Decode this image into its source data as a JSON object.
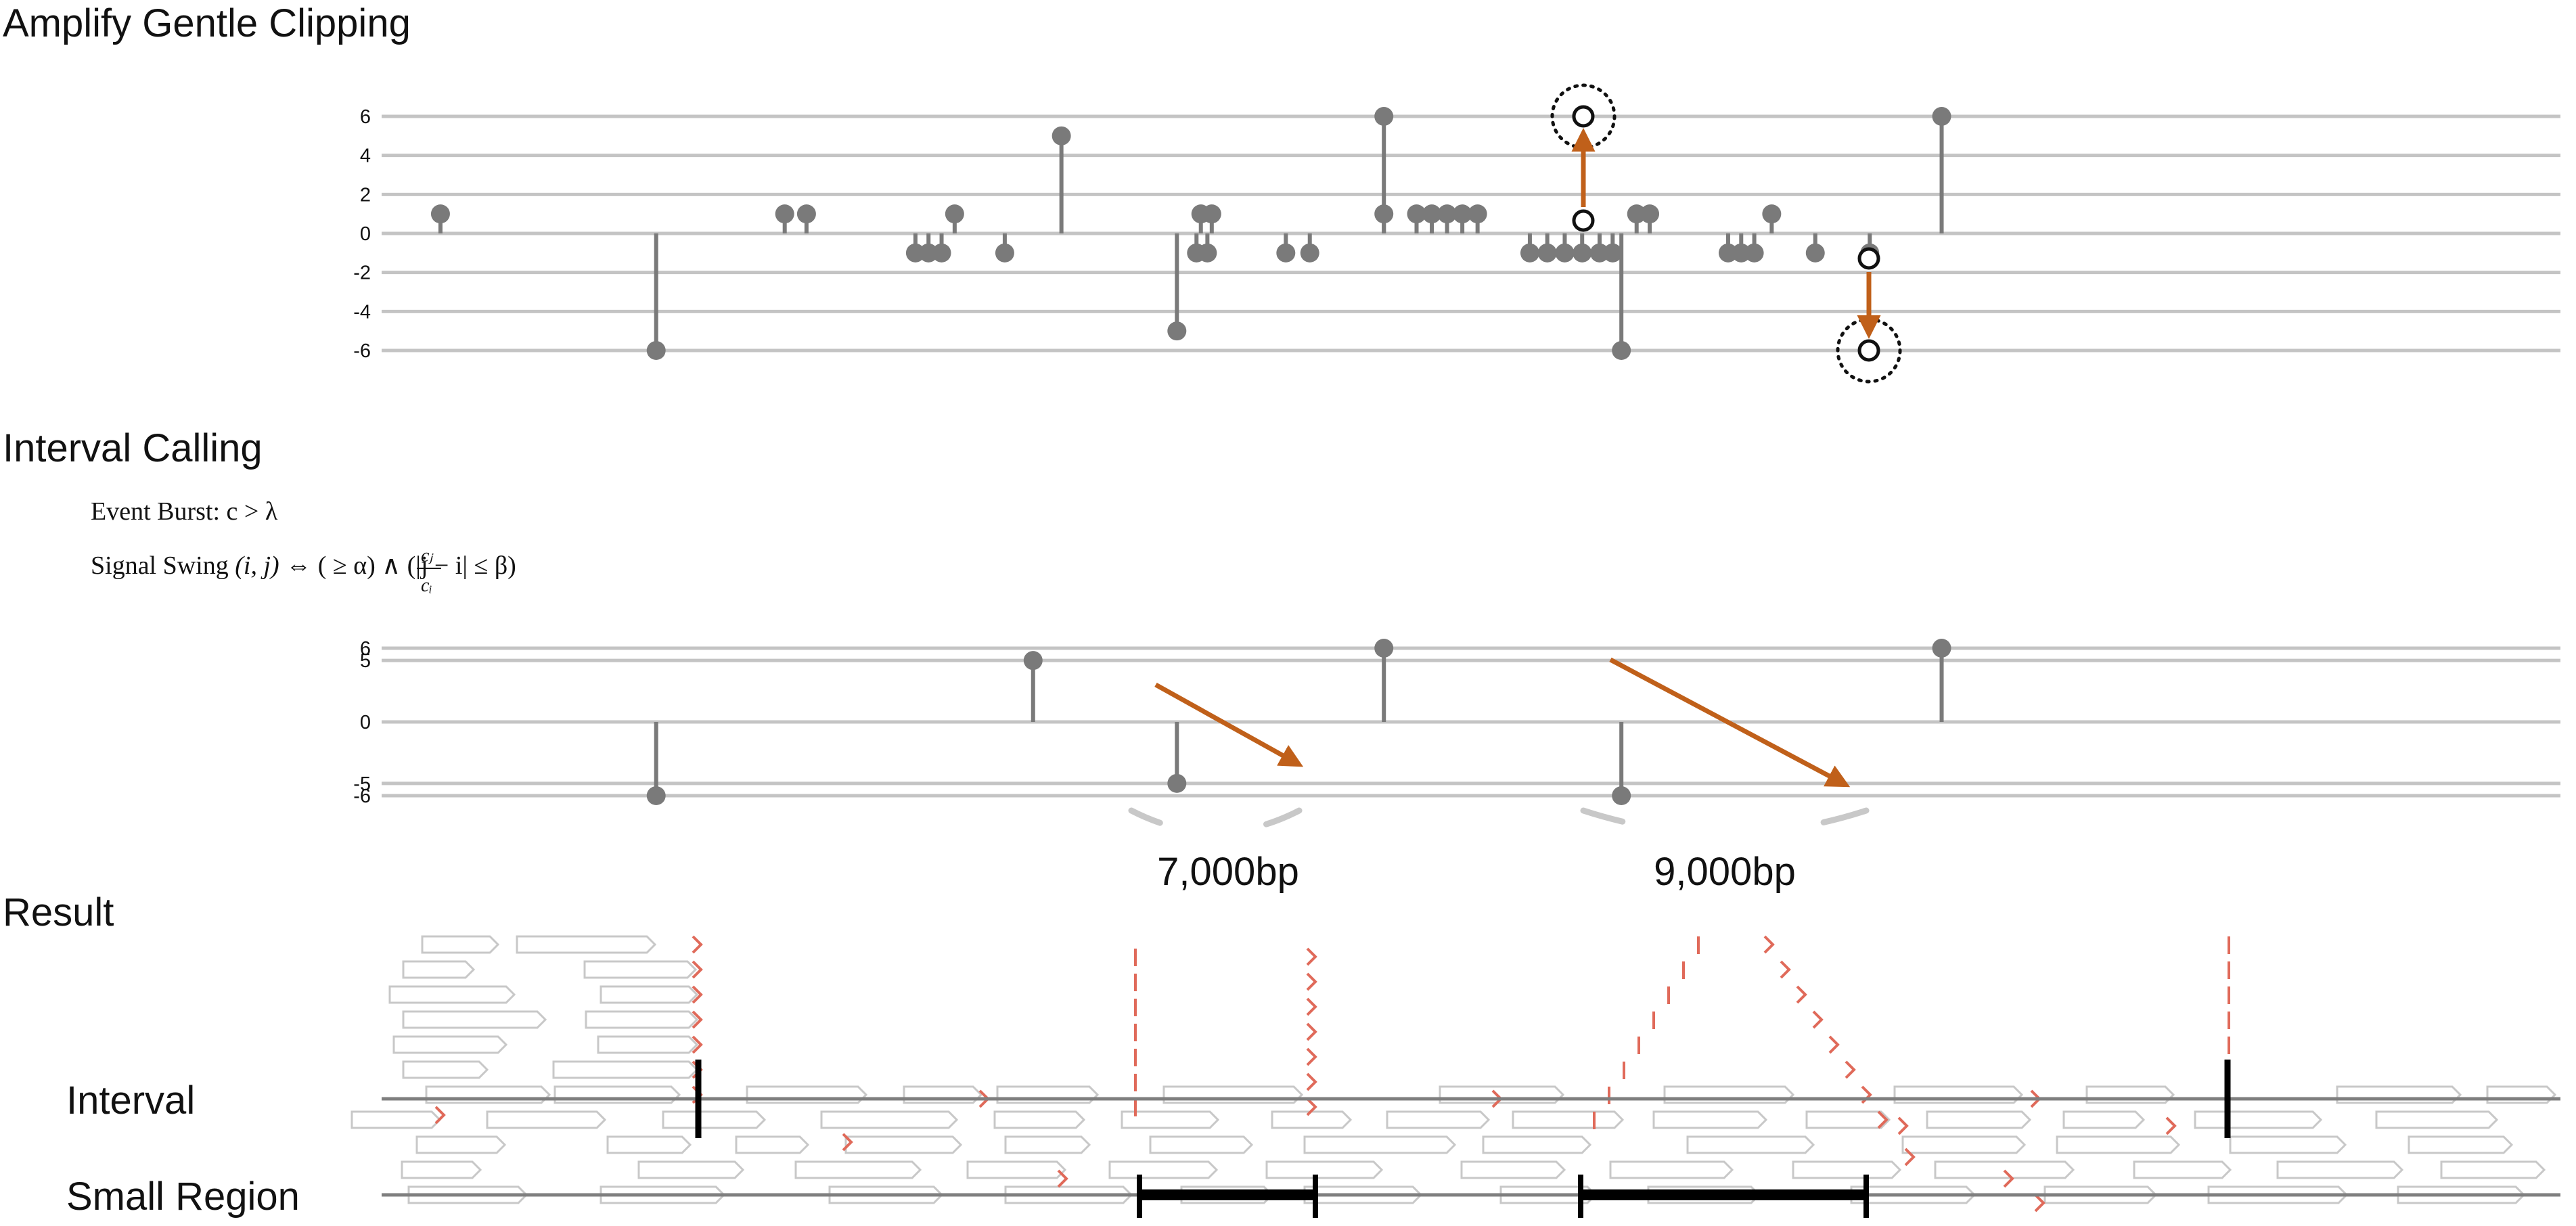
{
  "titles": {
    "amplify": "Amplify Gentle Clipping",
    "interval_calling": "Interval Calling",
    "result": "Result"
  },
  "formulas": {
    "event_burst": "Event Burst: c > λ",
    "signal_swing_prefix": "Signal Swing ",
    "signal_swing_args": "(i, j)",
    "iff": " ⇔ (",
    "frac_num": "cⱼ",
    "frac_den": "cᵢ",
    "ge_alpha": " ≥ α) ∧ (|j − i| ≤ β)"
  },
  "distances": [
    "7,000bp",
    "9,000bp"
  ],
  "row_labels": {
    "interval": "Interval",
    "small_region": "Small Region"
  },
  "colors": {
    "grid": "#c4c4c4",
    "marker": "#7a7a7a",
    "arrow": "#c0601a",
    "read": "#c8c8c8",
    "clip": "#e06a5a",
    "axis": "#7f7f7f",
    "bar": "#000000"
  },
  "chart_data": [
    {
      "type": "lollipop",
      "ticks": [
        6,
        4,
        2,
        0,
        -2,
        -4,
        -6
      ],
      "ylim": [
        -6,
        6
      ],
      "xlim": [
        0,
        100
      ],
      "points": [
        {
          "x": 2.7,
          "y": 1
        },
        {
          "x": 12.6,
          "y": -6
        },
        {
          "x": 18.5,
          "y": 1
        },
        {
          "x": 19.5,
          "y": 1
        },
        {
          "x": 24.5,
          "y": -1
        },
        {
          "x": 25.1,
          "y": -1
        },
        {
          "x": 25.7,
          "y": -1
        },
        {
          "x": 26.3,
          "y": 1
        },
        {
          "x": 28.6,
          "y": -1
        },
        {
          "x": 31.2,
          "y": 5
        },
        {
          "x": 36.5,
          "y": -5
        },
        {
          "x": 37.4,
          "y": -1
        },
        {
          "x": 37.6,
          "y": 1
        },
        {
          "x": 37.9,
          "y": -1
        },
        {
          "x": 38.1,
          "y": 1
        },
        {
          "x": 41.5,
          "y": -1
        },
        {
          "x": 42.6,
          "y": -1
        },
        {
          "x": 46.0,
          "y": 6
        },
        {
          "x": 46.0,
          "y": 1
        },
        {
          "x": 47.5,
          "y": 1
        },
        {
          "x": 48.2,
          "y": 1
        },
        {
          "x": 48.9,
          "y": 1
        },
        {
          "x": 49.6,
          "y": 1
        },
        {
          "x": 50.3,
          "y": 1
        },
        {
          "x": 52.7,
          "y": -1
        },
        {
          "x": 53.5,
          "y": -1
        },
        {
          "x": 54.3,
          "y": -1
        },
        {
          "x": 55.1,
          "y": -1
        },
        {
          "x": 55.9,
          "y": -1
        },
        {
          "x": 56.5,
          "y": -1
        },
        {
          "x": 56.9,
          "y": -6
        },
        {
          "x": 57.6,
          "y": 1
        },
        {
          "x": 58.2,
          "y": 1
        },
        {
          "x": 61.8,
          "y": -1
        },
        {
          "x": 62.4,
          "y": -1
        },
        {
          "x": 63.0,
          "y": -1
        },
        {
          "x": 63.8,
          "y": 1
        },
        {
          "x": 65.8,
          "y": -1
        },
        {
          "x": 68.3,
          "y": -1
        },
        {
          "x": 71.6,
          "y": 6
        }
      ]
    },
    {
      "type": "lollipop",
      "ticks": [
        6,
        5,
        0,
        -5,
        -6
      ],
      "ylim": [
        -6,
        6
      ],
      "xlim": [
        0,
        100
      ],
      "points": [
        {
          "x": 12.6,
          "y": -6
        },
        {
          "x": 29.9,
          "y": 5
        },
        {
          "x": 36.5,
          "y": -5
        },
        {
          "x": 46.0,
          "y": 6
        },
        {
          "x": 56.9,
          "y": -6
        },
        {
          "x": 71.6,
          "y": 6
        }
      ]
    }
  ]
}
